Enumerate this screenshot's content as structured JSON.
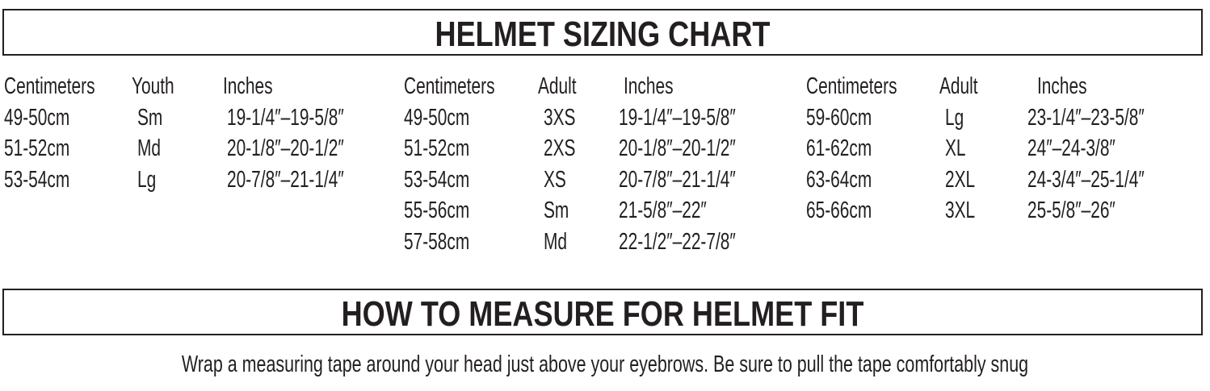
{
  "sizing_title": "HELMET SIZING CHART",
  "groups": [
    {
      "headers": [
        "Centimeters",
        "Youth",
        "Inches"
      ],
      "rows": [
        [
          "49-50cm",
          "Sm",
          "19-1/4″–19-5/8″"
        ],
        [
          "51-52cm",
          "Md",
          "20-1/8″–20-1/2″"
        ],
        [
          "53-54cm",
          "Lg",
          "20-7/8″–21-1/4″"
        ]
      ]
    },
    {
      "headers": [
        "Centimeters",
        "Adult",
        "Inches"
      ],
      "rows": [
        [
          "49-50cm",
          "3XS",
          "19-1/4″–19-5/8″"
        ],
        [
          "51-52cm",
          "2XS",
          "20-1/8″–20-1/2″"
        ],
        [
          "53-54cm",
          "XS",
          "20-7/8″–21-1/4″"
        ],
        [
          "55-56cm",
          "Sm",
          "21-5/8″–22″"
        ],
        [
          "57-58cm",
          "Md",
          "22-1/2″–22-7/8″"
        ]
      ]
    },
    {
      "headers": [
        "Centimeters",
        "Adult",
        "Inches"
      ],
      "rows": [
        [
          "59-60cm",
          "Lg",
          "23-1/4″–23-5/8″"
        ],
        [
          "61-62cm",
          "XL",
          "24″–24-3/8″"
        ],
        [
          "63-64cm",
          "2XL",
          "24-3/4″–25-1/4″"
        ],
        [
          "65-66cm",
          "3XL",
          "25-5/8″–26″"
        ]
      ]
    }
  ],
  "measure_title": "HOW TO MEASURE FOR HELMET FIT",
  "measure_text": "Wrap a measuring tape around your head just above your eyebrows. Be sure to pull the tape comfortably snug"
}
